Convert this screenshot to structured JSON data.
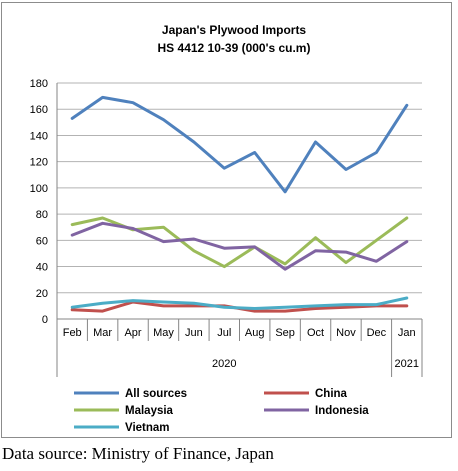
{
  "chart_data": {
    "type": "line",
    "title": "Japan's Plywood Imports",
    "subtitle": "HS 4412 10-39  (000's cu.m)",
    "categories": [
      "Feb",
      "Mar",
      "Apr",
      "May",
      "Jun",
      "Jul",
      "Aug",
      "Sep",
      "Oct",
      "Nov",
      "Dec",
      "Jan"
    ],
    "year_labels": [
      "2020",
      "2021"
    ],
    "ylim": [
      0,
      180
    ],
    "yticks": [
      0,
      20,
      40,
      60,
      80,
      100,
      120,
      140,
      160,
      180
    ],
    "grid": true,
    "legend_position": "bottom",
    "series": [
      {
        "name": "All sources",
        "color": "#4f81bd",
        "values": [
          153,
          169,
          165,
          152,
          135,
          115,
          127,
          97,
          135,
          114,
          127,
          163
        ]
      },
      {
        "name": "China",
        "color": "#c0504d",
        "values": [
          7,
          6,
          13,
          10,
          10,
          10,
          6,
          6,
          8,
          9,
          10,
          10
        ]
      },
      {
        "name": "Malaysia",
        "color": "#9bbb59",
        "values": [
          72,
          77,
          68,
          70,
          52,
          40,
          55,
          42,
          62,
          43,
          60,
          77
        ]
      },
      {
        "name": "Indonesia",
        "color": "#8064a2",
        "values": [
          64,
          73,
          69,
          59,
          61,
          54,
          55,
          38,
          52,
          51,
          44,
          59
        ]
      },
      {
        "name": "Vietnam",
        "color": "#4bacc6",
        "values": [
          9,
          12,
          14,
          13,
          12,
          9,
          8,
          9,
          10,
          11,
          11,
          16
        ]
      }
    ]
  },
  "source_note": "Data source: Ministry of Finance, Japan"
}
